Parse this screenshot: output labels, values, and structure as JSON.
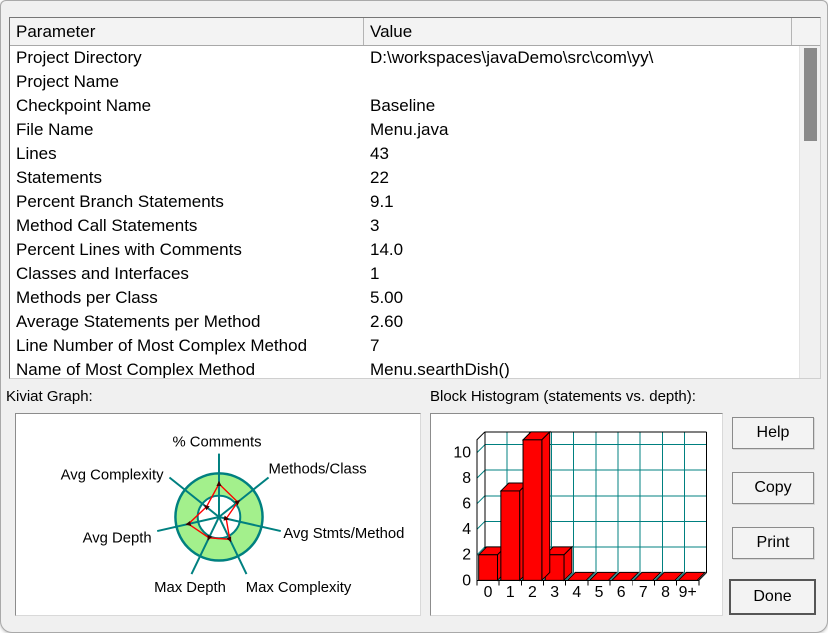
{
  "table": {
    "headers": [
      "Parameter",
      "Value"
    ],
    "rows": [
      {
        "parameter": "Project Directory",
        "value": "D:\\workspaces\\javaDemo\\src\\com\\yy\\"
      },
      {
        "parameter": "Project Name",
        "value": ""
      },
      {
        "parameter": "Checkpoint Name",
        "value": "Baseline"
      },
      {
        "parameter": "File Name",
        "value": "Menu.java"
      },
      {
        "parameter": "Lines",
        "value": "43"
      },
      {
        "parameter": "Statements",
        "value": "22"
      },
      {
        "parameter": "Percent Branch Statements",
        "value": "9.1"
      },
      {
        "parameter": "Method Call Statements",
        "value": "3"
      },
      {
        "parameter": "Percent Lines with Comments",
        "value": "14.0"
      },
      {
        "parameter": "Classes and Interfaces",
        "value": "1"
      },
      {
        "parameter": "Methods per Class",
        "value": "5.00"
      },
      {
        "parameter": "Average Statements per Method",
        "value": "2.60"
      },
      {
        "parameter": "Line Number of Most Complex Method",
        "value": "7"
      },
      {
        "parameter": "Name of Most Complex Method",
        "value": "Menu.searthDish()"
      }
    ]
  },
  "sections": {
    "kiviat_label": "Kiviat Graph:",
    "histogram_label": "Block Histogram (statements vs. depth):"
  },
  "charts": {
    "kiviat": {
      "type": "radar",
      "axes": [
        "% Comments",
        "Methods/Class",
        "Avg Stmts/Method",
        "Max Complexity",
        "Max Depth",
        "Avg Depth",
        "Avg Complexity"
      ],
      "values_fraction_of_outer_ring": [
        0.76,
        0.55,
        0.17,
        0.57,
        0.53,
        0.72,
        0.37
      ],
      "colors": {
        "axis": "#008080",
        "ring_fill": "#a3f08c",
        "inner_fill": "#ffffff",
        "polygon": "#ff0000",
        "marker": "#3d0000"
      }
    },
    "histogram": {
      "type": "bar",
      "categories": [
        "0",
        "1",
        "2",
        "3",
        "4",
        "5",
        "6",
        "7",
        "8",
        "9+"
      ],
      "values": [
        2,
        7,
        11,
        2,
        0,
        0,
        0,
        0,
        0,
        0
      ],
      "yticks": [
        0,
        2,
        4,
        6,
        8,
        10
      ],
      "ylim": [
        0,
        11
      ],
      "grid": true,
      "colors": {
        "bar": "#ff0000",
        "grid": "#008080",
        "frame": "#000000"
      }
    }
  },
  "buttons": {
    "help": "Help",
    "copy": "Copy",
    "print": "Print",
    "done": "Done"
  }
}
